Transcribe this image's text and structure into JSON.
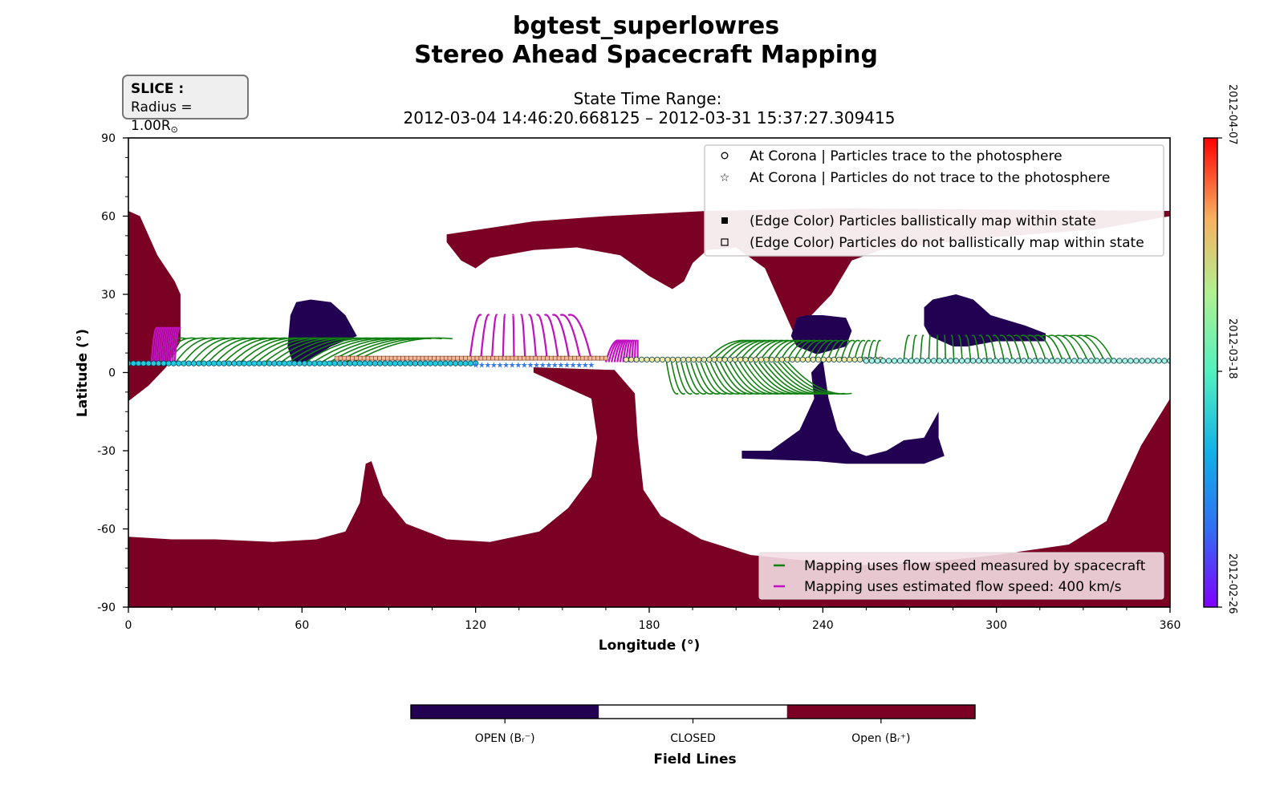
{
  "title": "bgtest_superlowres",
  "subtitle": "Stereo Ahead Spacecraft Mapping",
  "state_time": {
    "label": "State Time Range:",
    "range": "2012-03-04 14:46:20.668125 – 2012-03-31 15:37:27.309415"
  },
  "slice": {
    "heading": "SLICE :",
    "radius_prefix": "Radius = 1.00R",
    "radius_symbol": "⊙"
  },
  "chart_data": {
    "type": "scatter",
    "xlabel": "Longitude (°)",
    "ylabel": "Latitude (°)",
    "xlim": [
      0,
      360
    ],
    "ylim": [
      -90,
      90
    ],
    "xticks": [
      0,
      60,
      120,
      180,
      240,
      300,
      360
    ],
    "yticks": [
      90,
      60,
      30,
      0,
      -30,
      -60,
      -90
    ],
    "legend_markers": {
      "placement": "top-right",
      "entries": [
        {
          "symbol": "circle-open",
          "label": "At Corona | Particles trace to the photosphere"
        },
        {
          "symbol": "star-open",
          "label": "At Corona | Particles do not trace to the photosphere"
        },
        {
          "symbol": "square-filled",
          "label": "(Edge Color) Particles ballistically map within state"
        },
        {
          "symbol": "square-open",
          "label": "(Edge Color) Particles do not ballistically map within state"
        }
      ]
    },
    "legend_lines": {
      "placement": "bottom-right",
      "entries": [
        {
          "color": "#108010",
          "label": "Mapping uses flow speed measured by spacecraft"
        },
        {
          "color": "#c010c0",
          "label": "Mapping uses estimated flow speed: 400 km/s"
        }
      ]
    },
    "time_colorbar": {
      "colormap": "rainbow",
      "ticks": [
        "2012-04-07",
        "2012-03-18",
        "2012-02-26"
      ]
    },
    "field_colorbar": {
      "label": "Field Lines",
      "categories": [
        {
          "label": "OPEN (Bᵣ⁻)",
          "color": "#220052"
        },
        {
          "label": "CLOSED",
          "color": "#ffffff"
        },
        {
          "label": "Open (Bᵣ⁺)",
          "color": "#7a0024"
        }
      ]
    },
    "colors": {
      "open_negative": "#220052",
      "open_positive": "#7a0024",
      "measured_flow": "#108010",
      "estimated_flow": "#c010c0"
    },
    "regions": {
      "open_positive": [
        [
          [
            0,
            62
          ],
          [
            4,
            60
          ],
          [
            10,
            45
          ],
          [
            16,
            35
          ],
          [
            18,
            30
          ],
          [
            18,
            12
          ],
          [
            13,
            2
          ],
          [
            7,
            -5
          ],
          [
            0,
            -11
          ]
        ],
        [
          [
            110,
            53
          ],
          [
            140,
            58
          ],
          [
            165,
            60
          ],
          [
            200,
            62
          ],
          [
            245,
            63
          ],
          [
            360,
            62
          ],
          [
            360,
            60
          ],
          [
            335,
            55
          ],
          [
            300,
            52
          ],
          [
            260,
            47
          ],
          [
            250,
            43
          ],
          [
            243,
            30
          ],
          [
            230,
            15
          ],
          [
            220,
            40
          ],
          [
            210,
            48
          ],
          [
            200,
            47
          ],
          [
            195,
            42
          ],
          [
            192,
            35
          ],
          [
            188,
            32
          ],
          [
            180,
            37
          ],
          [
            170,
            45
          ],
          [
            155,
            48
          ],
          [
            140,
            47
          ],
          [
            125,
            44
          ],
          [
            120,
            40
          ],
          [
            115,
            43
          ],
          [
            110,
            50
          ]
        ],
        [
          [
            0,
            -63
          ],
          [
            15,
            -64
          ],
          [
            30,
            -64
          ],
          [
            50,
            -65
          ],
          [
            65,
            -64
          ],
          [
            75,
            -61
          ],
          [
            80,
            -50
          ],
          [
            82,
            -35
          ],
          [
            84,
            -34
          ],
          [
            88,
            -47
          ],
          [
            96,
            -58
          ],
          [
            110,
            -64
          ],
          [
            125,
            -65
          ],
          [
            142,
            -61
          ],
          [
            152,
            -52
          ],
          [
            160,
            -40
          ],
          [
            162,
            -25
          ],
          [
            160,
            -10
          ],
          [
            150,
            -5
          ],
          [
            140,
            0
          ],
          [
            140,
            2
          ],
          [
            168,
            1
          ],
          [
            175,
            -8
          ],
          [
            176,
            -25
          ],
          [
            178,
            -45
          ],
          [
            184,
            -55
          ],
          [
            198,
            -64
          ],
          [
            215,
            -70
          ],
          [
            250,
            -74
          ],
          [
            275,
            -73
          ],
          [
            300,
            -70
          ],
          [
            325,
            -66
          ],
          [
            338,
            -57
          ],
          [
            345,
            -40
          ],
          [
            350,
            -28
          ],
          [
            360,
            -10
          ],
          [
            360,
            -90
          ],
          [
            0,
            -90
          ]
        ]
      ],
      "open_negative": [
        [
          [
            55,
            10
          ],
          [
            56,
            22
          ],
          [
            58,
            27
          ],
          [
            63,
            28
          ],
          [
            70,
            27
          ],
          [
            75,
            22
          ],
          [
            79,
            14
          ],
          [
            70,
            10
          ],
          [
            60,
            3
          ],
          [
            57,
            3
          ]
        ],
        [
          [
            229,
            14
          ],
          [
            231,
            21
          ],
          [
            234,
            22
          ],
          [
            240,
            22
          ],
          [
            248,
            21
          ],
          [
            250,
            16
          ],
          [
            248,
            10
          ],
          [
            238,
            7
          ],
          [
            231,
            10
          ]
        ],
        [
          [
            240,
            5
          ],
          [
            242,
            -10
          ],
          [
            245,
            -22
          ],
          [
            250,
            -30
          ],
          [
            255,
            -32
          ],
          [
            262,
            -30
          ],
          [
            268,
            -26
          ],
          [
            275,
            -25
          ],
          [
            280,
            -15
          ],
          [
            280,
            -25
          ],
          [
            282,
            -32
          ],
          [
            275,
            -35
          ],
          [
            255,
            -35
          ],
          [
            248,
            -35
          ],
          [
            238,
            -34
          ],
          [
            212,
            -33
          ],
          [
            212,
            -30
          ],
          [
            222,
            -30
          ],
          [
            232,
            -22
          ],
          [
            237,
            -10
          ],
          [
            236,
            0
          ]
        ],
        [
          [
            275,
            25
          ],
          [
            278,
            28
          ],
          [
            286,
            30
          ],
          [
            292,
            28
          ],
          [
            298,
            22
          ],
          [
            310,
            18
          ],
          [
            317,
            15
          ],
          [
            317,
            12
          ],
          [
            300,
            12
          ],
          [
            290,
            10
          ],
          [
            285,
            10
          ],
          [
            277,
            14
          ],
          [
            275,
            18
          ]
        ]
      ],
      "measured_flow_clusters": [
        {
          "base_x": [
            8,
            78
          ],
          "base_y": 4,
          "top_x": [
            20,
            112
          ],
          "top_y": 13
        },
        {
          "base_x": [
            186,
            228
          ],
          "base_y": 4,
          "top_x": [
            190,
            250
          ],
          "top_y": -8
        },
        {
          "base_x": [
            200,
            258
          ],
          "base_y": 5,
          "top_x": [
            215,
            260
          ],
          "top_y": 12
        },
        {
          "base_x": [
            268,
            340
          ],
          "base_y": 5,
          "top_x": [
            270,
            330
          ],
          "top_y": 14
        }
      ],
      "estimated_flow_clusters": [
        {
          "base_x": [
            8,
            16
          ],
          "base_y": 4,
          "top_x": [
            10,
            18
          ],
          "top_y": 17
        },
        {
          "base_x": [
            118,
            160
          ],
          "base_y": 5,
          "top_x": [
            122,
            152
          ],
          "top_y": 22
        },
        {
          "base_x": [
            165,
            176
          ],
          "base_y": 4,
          "top_x": [
            170,
            176
          ],
          "top_y": 12
        }
      ]
    },
    "footpoints": [
      {
        "x_start": 0,
        "x_end": 120,
        "y": 3.5,
        "count": 70,
        "shape": "circle",
        "color": "#22cce0"
      },
      {
        "x_start": 72,
        "x_end": 165,
        "y": 5.5,
        "count": 70,
        "shape": "square",
        "color": "#f4b89a"
      },
      {
        "x_start": 120,
        "x_end": 160,
        "y": 3,
        "count": 20,
        "shape": "star",
        "color": "#3a7ae8"
      },
      {
        "x_start": 172,
        "x_end": 260,
        "y": 5,
        "count": 50,
        "shape": "circle",
        "color": "#f7e7a0"
      },
      {
        "x_start": 255,
        "x_end": 360,
        "y": 4.5,
        "count": 55,
        "shape": "circle",
        "color": "#b0f3e0"
      }
    ]
  }
}
